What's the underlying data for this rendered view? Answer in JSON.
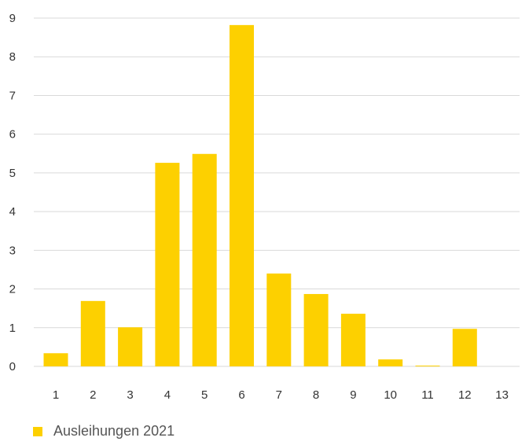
{
  "chart_data": {
    "type": "bar",
    "categories": [
      "1",
      "2",
      "3",
      "4",
      "5",
      "6",
      "7",
      "8",
      "9",
      "10",
      "11",
      "12",
      "13"
    ],
    "series": [
      {
        "name": "Ausleihungen 2021",
        "values": [
          0.34,
          1.69,
          1.01,
          5.26,
          5.49,
          8.82,
          2.4,
          1.87,
          1.36,
          0.18,
          0.02,
          0.97,
          0
        ]
      }
    ],
    "ylim": [
      0,
      9
    ],
    "yticks": [
      0,
      1,
      2,
      3,
      4,
      5,
      6,
      7,
      8,
      9
    ],
    "grid": true,
    "legend_position": "bottom-left",
    "bar_color": "#FDD000",
    "grid_color": "#d9d9d9"
  }
}
